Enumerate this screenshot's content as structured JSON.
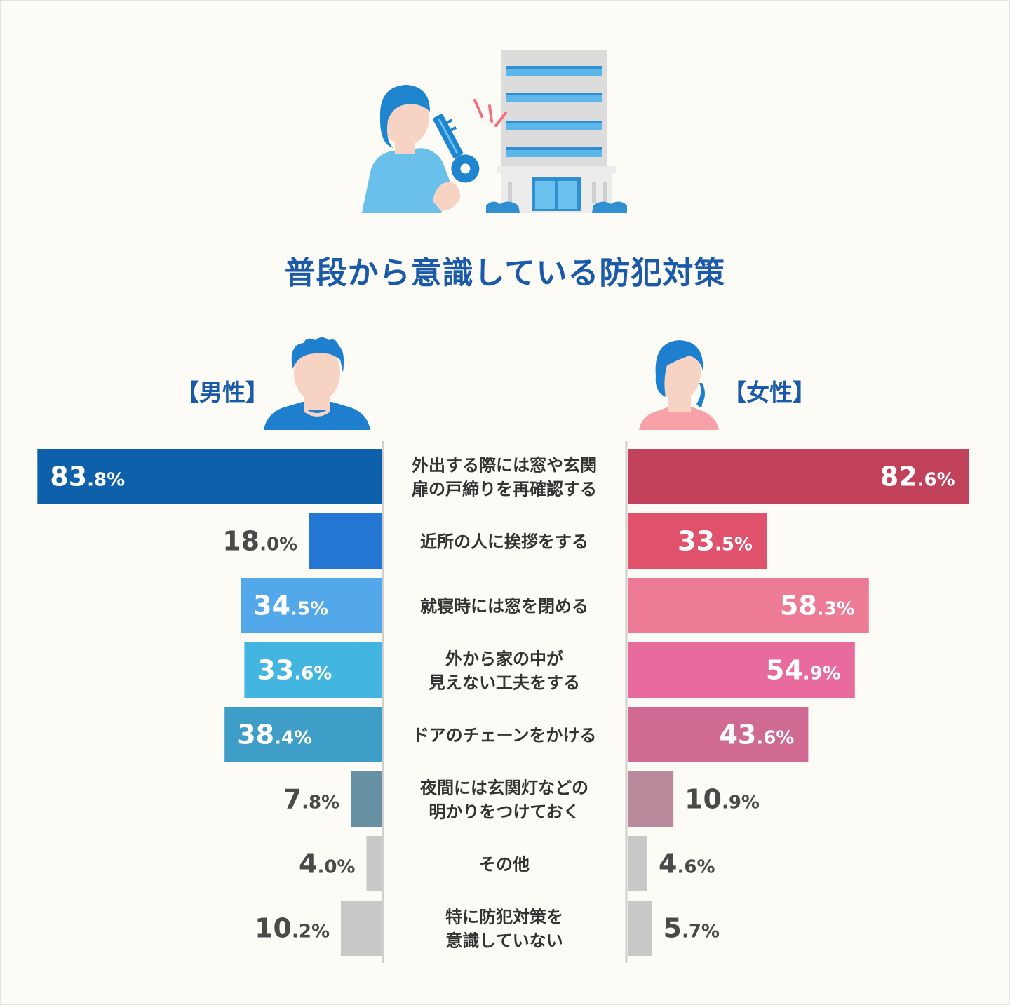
{
  "title": "普段から意識している防犯対策",
  "male_label": "【男性】",
  "female_label": "【女性】",
  "chart_data": {
    "type": "bar",
    "categories": [
      "外出する際には窓や玄関\n扉の戸締りを再確認する",
      "近所の人に挨拶をする",
      "就寝時には窓を閉める",
      "外から家の中が\n見えない工夫をする",
      "ドアのチェーンをかける",
      "夜間には玄関灯などの\n明かりをつけておく",
      "その他",
      "特に防犯対策を\n意識していない"
    ],
    "series": [
      {
        "name": "男性",
        "values": [
          83.8,
          18.0,
          34.5,
          33.6,
          38.4,
          7.8,
          4.0,
          10.2
        ],
        "colors": [
          "#0e60ab",
          "#2377d3",
          "#52a8e8",
          "#42b6e0",
          "#3f9ec7",
          "#6791a3",
          "#c8c8c8",
          "#c8c8c8"
        ]
      },
      {
        "name": "女性",
        "values": [
          82.6,
          33.5,
          58.3,
          54.9,
          43.6,
          10.9,
          4.6,
          5.7
        ],
        "colors": [
          "#c1405a",
          "#e0526c",
          "#ee7b96",
          "#e96b9e",
          "#d16a93",
          "#b98a9b",
          "#c8c8c8",
          "#c8c8c8"
        ]
      }
    ]
  },
  "icons": [
    "woman-with-key-icon",
    "building-icon",
    "man-avatar-icon",
    "woman-avatar-icon"
  ]
}
